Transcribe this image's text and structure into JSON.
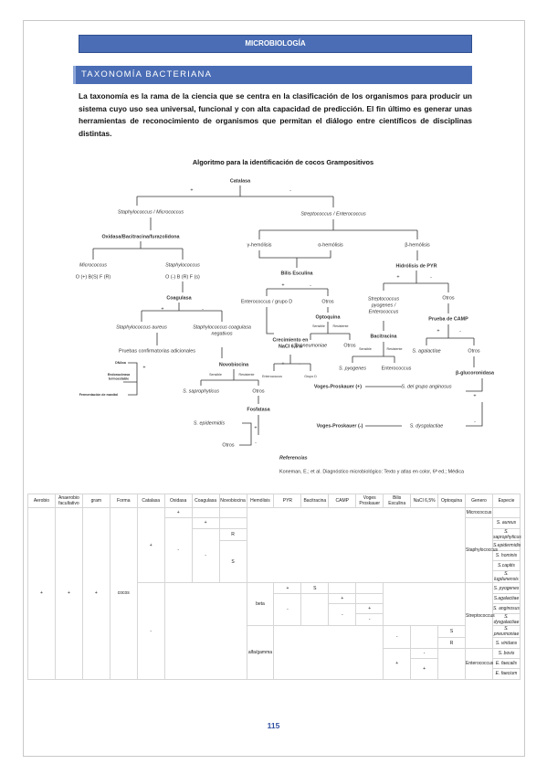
{
  "header": {
    "label": "MICROBIOLOGÍA"
  },
  "section": {
    "title": "TAXONOMÍA BACTERIANA",
    "paragraph": "La taxonomía es la rama de la ciencia que se centra en la clasificación de los organismos para producir un sistema cuyo uso sea universal, funcional y con alta capacidad de predicción. El fin último es generar unas herramientas de reconocimiento de organismos que permitan el diálogo entre científicos de disciplinas distintas."
  },
  "diagram": {
    "title": "Algoritmo para la identificación de cocos Grampositivos",
    "nodes": [
      {
        "lines": [
          "Catalasa"
        ]
      },
      {
        "lines": [
          "+"
        ]
      },
      {
        "lines": [
          "-"
        ]
      },
      {
        "lines": [
          "Staphylococcus / Micrococcus"
        ]
      },
      {
        "lines": [
          "Streptococcus / Enterococcus"
        ]
      },
      {
        "lines": [
          "Oxidasa/Bacitracina/furazolidona"
        ]
      },
      {
        "lines": [
          "γ-hemólisis"
        ]
      },
      {
        "lines": [
          "α-hemólisis"
        ]
      },
      {
        "lines": [
          "β-hemólisis"
        ]
      },
      {
        "lines": [
          "Micrococcus"
        ]
      },
      {
        "lines": [
          "Staphylococcus"
        ]
      },
      {
        "lines": [
          "O (+) B(S) F (R)"
        ]
      },
      {
        "lines": [
          "O (-) B (R) F (s)"
        ]
      },
      {
        "lines": [
          "Hidrólisis de PYR"
        ]
      },
      {
        "lines": [
          "+"
        ]
      },
      {
        "lines": [
          "-"
        ]
      },
      {
        "lines": [
          "Bilis Esculina"
        ]
      },
      {
        "lines": [
          "+"
        ]
      },
      {
        "lines": [
          "-"
        ]
      },
      {
        "lines": [
          "Coagulasa"
        ]
      },
      {
        "lines": [
          "+"
        ]
      },
      {
        "lines": [
          "-"
        ]
      },
      {
        "lines": [
          "Enterococcus / grupo D"
        ]
      },
      {
        "lines": [
          "Otros"
        ]
      },
      {
        "lines": [
          "Streptococcus",
          "pyogenes /",
          "Enterococcus"
        ]
      },
      {
        "lines": [
          "Otros"
        ]
      },
      {
        "lines": [
          "Optoquina"
        ]
      },
      {
        "lines": [
          "Prueba de CAMP"
        ]
      },
      {
        "lines": [
          "+"
        ]
      },
      {
        "lines": [
          "-"
        ]
      },
      {
        "lines": [
          "Staphylococcus aureus"
        ]
      },
      {
        "lines": [
          "Staphylococcus coagulasa",
          "negativos"
        ]
      },
      {
        "lines": [
          "Sensible"
        ]
      },
      {
        "lines": [
          "Resistente"
        ]
      },
      {
        "lines": [
          "Bacitracina"
        ]
      },
      {
        "lines": [
          "Crecimiento en",
          "NaCl 6,5%"
        ]
      },
      {
        "lines": [
          "S. pneumoniae"
        ]
      },
      {
        "lines": [
          "Otros"
        ]
      },
      {
        "lines": [
          "S. agalactiae"
        ]
      },
      {
        "lines": [
          "Otros"
        ]
      },
      {
        "lines": [
          "Pruebas confirmatorias adicionales"
        ]
      },
      {
        "lines": [
          "Sensible"
        ]
      },
      {
        "lines": [
          "Resistente"
        ]
      },
      {
        "lines": [
          "DNAsa"
        ]
      },
      {
        "lines": [
          "Endonucleasa",
          "termoestable"
        ]
      },
      {
        "lines": [
          "Fermentación de manitol"
        ]
      },
      {
        "lines": [
          "+"
        ]
      },
      {
        "lines": [
          "Novobiocina"
        ]
      },
      {
        "lines": [
          "+"
        ]
      },
      {
        "lines": [
          "-"
        ]
      },
      {
        "lines": [
          "S. pyogenes"
        ]
      },
      {
        "lines": [
          "Enterococcus"
        ]
      },
      {
        "lines": [
          "β-glucoronidasa"
        ]
      },
      {
        "lines": [
          "Sensible"
        ]
      },
      {
        "lines": [
          "Resistente"
        ]
      },
      {
        "lines": [
          "Enterococcus"
        ]
      },
      {
        "lines": [
          "Grupo D"
        ]
      },
      {
        "lines": [
          "Voges-Proskauer (+)"
        ]
      },
      {
        "lines": [
          "S. del grupo anginosus"
        ]
      },
      {
        "lines": [
          "+"
        ]
      },
      {
        "lines": [
          "S. saprophyticus"
        ]
      },
      {
        "lines": [
          "Otros"
        ]
      },
      {
        "lines": [
          "Fosfatasa"
        ]
      },
      {
        "lines": [
          "Voges-Proskauer (-)"
        ]
      },
      {
        "lines": [
          "S. dysgalactiae"
        ]
      },
      {
        "lines": [
          "-"
        ]
      },
      {
        "lines": [
          "S. epidermidis"
        ]
      },
      {
        "lines": [
          "+"
        ]
      },
      {
        "lines": [
          "-"
        ]
      },
      {
        "lines": [
          "Otros"
        ]
      }
    ],
    "reference": {
      "title": "Referencias",
      "text": "Koneman, E.; et al. Diagnóstico microbiológico: Texto y atlas en color, 6ª ed.; Médica"
    }
  },
  "table": {
    "headers": [
      "Aerobio",
      "Anaerobio facultativo",
      "gram",
      "Forma",
      "Catalasa",
      "Oxidasa",
      "Coagulasa",
      "Novobiocina",
      "Hemólisis",
      "PYR",
      "Bacitracina",
      "CAMP",
      "Voges Proskauer",
      "Bilis Esculina",
      "NaCl 6,5%",
      "Optoquina",
      "Genero",
      "Especie"
    ],
    "rows": [
      [
        "+",
        "+",
        "+",
        "cocos",
        "+",
        "+",
        "Micrococcus"
      ],
      [
        "-",
        "+",
        "Staphylococcus",
        "S. aureus"
      ],
      [
        "-",
        "R",
        "S. saprophyticus"
      ],
      [
        "S",
        "S.epidermidis"
      ],
      [
        "S. hominis"
      ],
      [
        "S.capitis"
      ],
      [
        "S. lugdunensis"
      ],
      [
        "-",
        "beta",
        "+",
        "S",
        "Streptococcus",
        "S. pyogenes"
      ],
      [
        "-",
        "+",
        "S.agalactiae"
      ],
      [
        "-",
        "+",
        "S. anginosus"
      ],
      [
        "-",
        "S. dysgalactiae"
      ],
      [
        "alfa/gamma",
        "-",
        "S",
        "S. pneumoniae"
      ],
      [
        "R",
        "S. viridans"
      ],
      [
        "+",
        "-",
        "Enterococcus",
        "S. bovis"
      ],
      [
        "+",
        "E. faecalis"
      ],
      [
        "E. faecium"
      ]
    ]
  },
  "footer": {
    "page": "115"
  }
}
